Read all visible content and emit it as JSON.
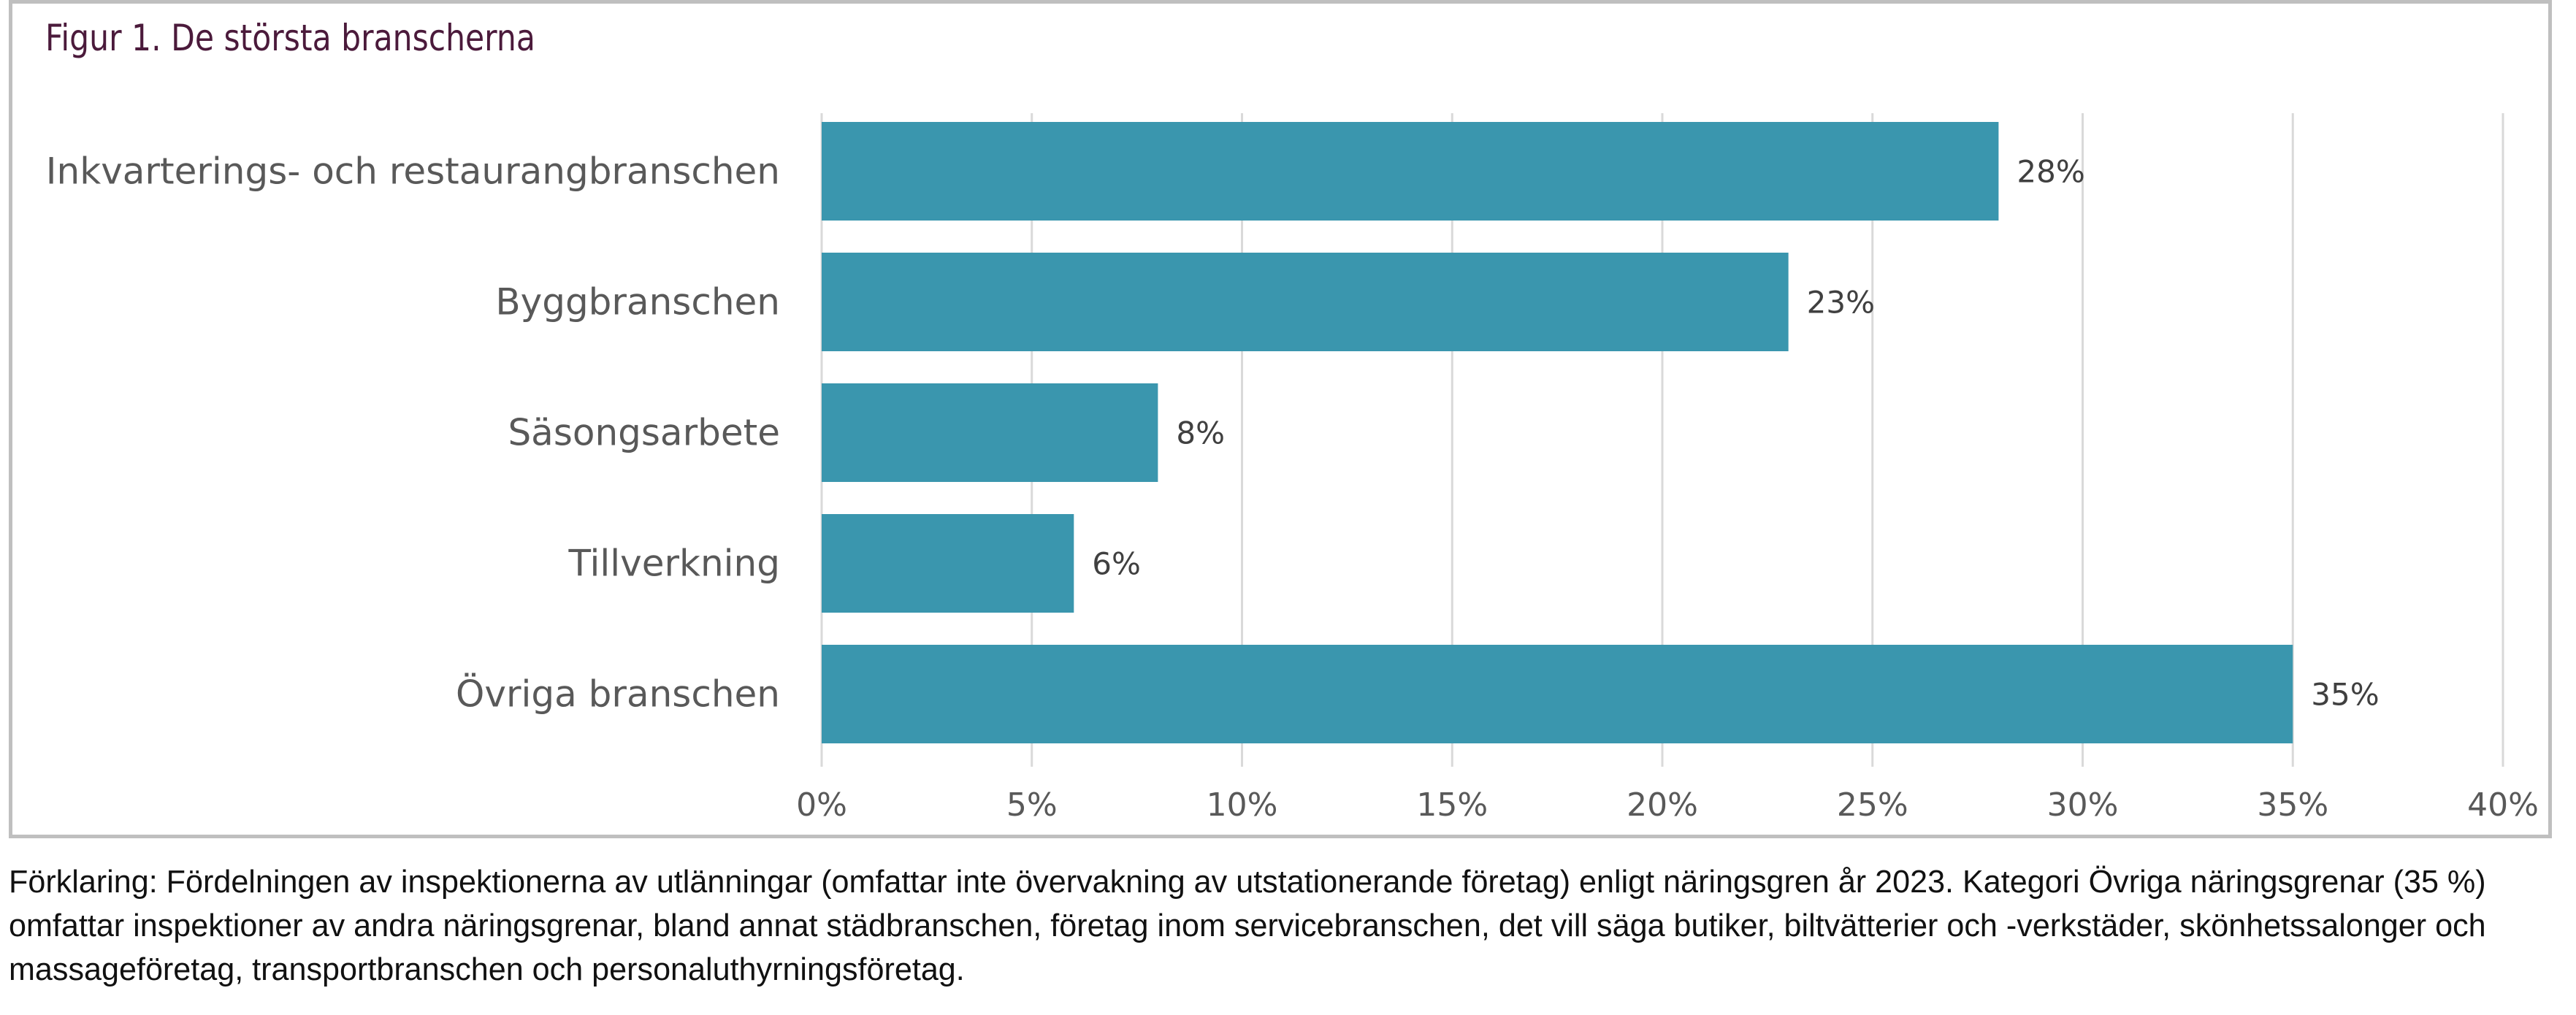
{
  "chart_data": {
    "type": "bar",
    "orientation": "horizontal",
    "title": "Figur 1. De största branscherna",
    "categories": [
      "Inkvarterings- och restaurangbranschen",
      "Byggbranschen",
      "Säsongsarbete",
      "Tillverkning",
      "Övriga branschen"
    ],
    "values": [
      28,
      23,
      8,
      6,
      35
    ],
    "data_labels": [
      "28%",
      "23%",
      "8%",
      "6%",
      "35%"
    ],
    "xticks": [
      "0%",
      "5%",
      "10%",
      "15%",
      "20%",
      "25%",
      "30%",
      "35%",
      "40%"
    ],
    "xlim": [
      0,
      40
    ],
    "xlabel": "",
    "ylabel": "",
    "grid": true,
    "bar_color": "#3a96ae"
  },
  "caption": "Förklaring: Fördelningen av inspektionerna av utlänningar (omfattar inte övervakning av utstationerande företag) enligt näringsgren år 2023. Kategori Övriga näringsgrenar (35 %) omfattar inspektioner av andra näringsgrenar, bland annat städbranschen, företag inom servicebranschen, det vill säga butiker, biltvätterier och -verkstäder, skönhetssalonger och massageföretag, transportbranschen och personaluthyrningsföretag."
}
